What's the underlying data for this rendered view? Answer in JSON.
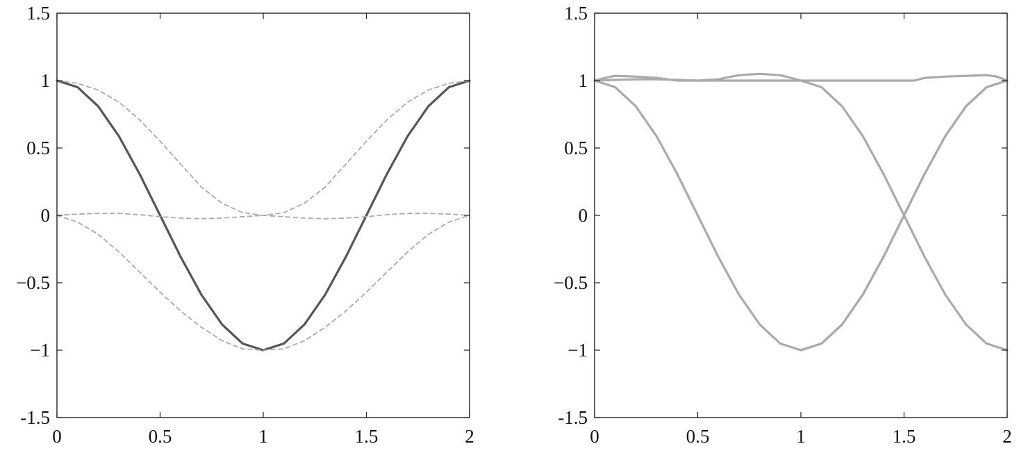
{
  "chart_data": [
    {
      "type": "line",
      "title": "",
      "xlabel": "",
      "ylabel": "",
      "xlim": [
        0,
        2
      ],
      "ylim": [
        -1.5,
        1.5
      ],
      "grid": false,
      "xticks": [
        0,
        0.5,
        1,
        1.5,
        2
      ],
      "xtick_labels": [
        "0",
        "0.5",
        "1",
        "1.5",
        "2"
      ],
      "yticks": [
        -1.5,
        -1,
        -0.5,
        0,
        0.5,
        1,
        1.5
      ],
      "ytick_labels": [
        "-1.5",
        "−1",
        "−0.5",
        "0",
        "0.5",
        "1",
        "1.5"
      ],
      "series": [
        {
          "style": "solid",
          "color": "#555555",
          "x": [
            0,
            0.1,
            0.2,
            0.3,
            0.4,
            0.5,
            0.6,
            0.7,
            0.8,
            0.9,
            1.0,
            1.1,
            1.2,
            1.3,
            1.4,
            1.5,
            1.6,
            1.7,
            1.8,
            1.9,
            2.0
          ],
          "y": [
            1,
            0.951,
            0.809,
            0.588,
            0.309,
            0,
            -0.309,
            -0.588,
            -0.809,
            -0.951,
            -1,
            -0.951,
            -0.809,
            -0.588,
            -0.309,
            0,
            0.309,
            0.588,
            0.809,
            0.951,
            1
          ]
        },
        {
          "style": "dashed",
          "color": "#aaaaaa",
          "x": [
            0,
            0.1,
            0.2,
            0.3,
            0.4,
            0.5,
            0.6,
            0.7,
            0.8,
            0.9,
            1.0,
            1.1,
            1.2,
            1.3,
            1.4,
            1.5,
            1.6,
            1.7,
            1.8,
            1.9,
            2.0
          ],
          "y": [
            1,
            0.98,
            0.93,
            0.84,
            0.71,
            0.55,
            0.38,
            0.21,
            0.09,
            0.02,
            0,
            0.02,
            0.09,
            0.21,
            0.38,
            0.55,
            0.71,
            0.84,
            0.93,
            0.98,
            1
          ]
        },
        {
          "style": "dashed",
          "color": "#aaaaaa",
          "x": [
            0,
            0.1,
            0.2,
            0.3,
            0.4,
            0.5,
            0.6,
            0.7,
            0.8,
            0.9,
            1.0,
            1.1,
            1.2,
            1.3,
            1.4,
            1.5,
            1.6,
            1.7,
            1.8,
            1.9,
            2.0
          ],
          "y": [
            0,
            -0.05,
            -0.14,
            -0.27,
            -0.42,
            -0.57,
            -0.71,
            -0.83,
            -0.93,
            -0.99,
            -1,
            -0.99,
            -0.93,
            -0.83,
            -0.71,
            -0.57,
            -0.42,
            -0.27,
            -0.14,
            -0.05,
            0
          ]
        },
        {
          "style": "dashed",
          "color": "#aaaaaa",
          "x": [
            0,
            0.1,
            0.2,
            0.3,
            0.4,
            0.5,
            0.6,
            0.7,
            0.8,
            0.9,
            1.0,
            1.1,
            1.2,
            1.3,
            1.4,
            1.5,
            1.6,
            1.7,
            1.8,
            1.9,
            2.0
          ],
          "y": [
            0,
            0.01,
            0.015,
            0.015,
            0.005,
            -0.01,
            -0.02,
            -0.025,
            -0.02,
            -0.01,
            0,
            -0.01,
            -0.02,
            -0.025,
            -0.02,
            -0.01,
            0.005,
            0.015,
            0.015,
            0.01,
            0
          ]
        }
      ]
    },
    {
      "type": "line",
      "title": "",
      "xlabel": "",
      "ylabel": "",
      "xlim": [
        0,
        2
      ],
      "ylim": [
        -1.5,
        1.5
      ],
      "grid": false,
      "xticks": [
        0,
        0.5,
        1,
        1.5,
        2
      ],
      "xtick_labels": [
        "0",
        "0.5",
        "1",
        "1.5",
        "2"
      ],
      "yticks": [
        -1.5,
        -1,
        -0.5,
        0,
        0.5,
        1,
        1.5
      ],
      "ytick_labels": [
        "-1.5",
        "−1",
        "−0.5",
        "0",
        "0.5",
        "1",
        "1.5"
      ],
      "series": [
        {
          "style": "solid",
          "color": "#aaaaaa",
          "x": [
            0,
            0.1,
            0.2,
            0.3,
            0.4,
            0.5,
            0.6,
            0.7,
            0.8,
            0.9,
            1.0,
            1.1,
            1.2,
            1.3,
            1.4,
            1.5,
            1.6,
            1.7,
            1.8,
            1.9,
            2.0
          ],
          "y": [
            1,
            0.951,
            0.809,
            0.588,
            0.309,
            0,
            -0.309,
            -0.588,
            -0.809,
            -0.951,
            -1,
            -0.951,
            -0.809,
            -0.588,
            -0.309,
            0,
            0.309,
            0.588,
            0.809,
            0.951,
            1
          ]
        },
        {
          "style": "solid",
          "color": "#aaaaaa",
          "x": [
            0,
            0.1,
            0.2,
            0.3,
            0.4,
            0.5,
            0.6,
            0.7,
            0.8,
            0.9,
            1.0,
            1.1,
            1.2,
            1.3,
            1.4,
            1.5,
            1.6,
            1.7,
            1.8,
            1.9,
            2.0
          ],
          "y": [
            1,
            1.005,
            1.01,
            1.01,
            1.005,
            1.0,
            1.0,
            1.0,
            1.0,
            1.0,
            1.0,
            0.951,
            0.809,
            0.588,
            0.309,
            0,
            -0.309,
            -0.588,
            -0.809,
            -0.951,
            -1
          ]
        },
        {
          "style": "solid",
          "color": "#aaaaaa",
          "x": [
            0,
            0.05,
            0.1,
            0.2,
            0.3,
            0.4,
            0.5,
            0.6,
            0.7,
            0.8,
            0.9,
            1.0,
            1.1,
            1.2,
            1.3,
            1.4,
            1.5,
            1.55,
            1.6,
            1.7,
            1.8,
            1.9,
            1.95,
            2.0
          ],
          "y": [
            1,
            1.02,
            1.035,
            1.03,
            1.02,
            1.0,
            1.0,
            1.01,
            1.04,
            1.05,
            1.04,
            1.0,
            1.0,
            1.0,
            1.0,
            1.0,
            1.0,
            1.0,
            1.02,
            1.03,
            1.035,
            1.04,
            1.03,
            1.0
          ]
        },
        {
          "style": "solid",
          "color": "#aaaaaa",
          "x": [
            1.0,
            1.1,
            1.2,
            1.3,
            1.4,
            1.5,
            1.6,
            1.7,
            1.8,
            1.9,
            2.0
          ],
          "y": [
            -1,
            -0.951,
            -0.809,
            -0.588,
            -0.309,
            0,
            0.309,
            0.588,
            0.809,
            0.951,
            1
          ]
        }
      ]
    }
  ]
}
